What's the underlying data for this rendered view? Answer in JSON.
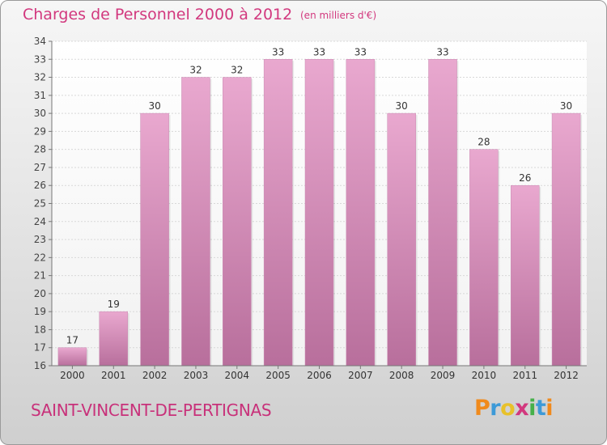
{
  "header": {
    "title": "Charges de Personnel 2000 à 2012",
    "subtitle": "(en milliers d'€)"
  },
  "footer": {
    "commune": "SAINT-VINCENT-DE-PERTIGNAS",
    "logo": "Proxiti",
    "logo_colors": [
      "#f08a1c",
      "#3d9ad8",
      "#e8c12a",
      "#d2387e",
      "#46b04a",
      "#3d9ad8",
      "#f08a1c"
    ]
  },
  "colors": {
    "bar_top": "#e9a8cf",
    "bar_bottom": "#b86f9c",
    "accent": "#d2387e"
  },
  "chart_data": {
    "type": "bar",
    "title": "Charges de Personnel 2000 à 2012",
    "subtitle": "(en milliers d'€)",
    "categories": [
      "2000",
      "2001",
      "2002",
      "2003",
      "2004",
      "2005",
      "2006",
      "2007",
      "2008",
      "2009",
      "2010",
      "2011",
      "2012"
    ],
    "values": [
      17,
      19,
      30,
      32,
      32,
      33,
      33,
      33,
      30,
      33,
      28,
      26,
      30
    ],
    "ylim": [
      16,
      34
    ],
    "yticks": [
      16,
      17,
      18,
      19,
      20,
      21,
      22,
      23,
      24,
      25,
      26,
      27,
      28,
      29,
      30,
      31,
      32,
      33,
      34
    ],
    "grid": true,
    "legend": "none",
    "xlabel": "",
    "ylabel": ""
  }
}
